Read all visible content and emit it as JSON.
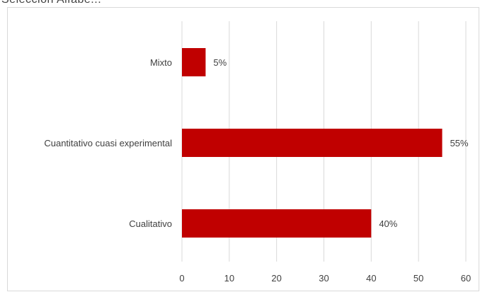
{
  "page": {
    "top_fragment": "Selección Alfabé..."
  },
  "chart_data": {
    "type": "bar",
    "orientation": "horizontal",
    "categories": [
      "Mixto",
      "Cuantitativo cuasi experimental",
      "Cualitativo"
    ],
    "values": [
      5,
      55,
      40
    ],
    "data_labels": [
      "5%",
      "55%",
      "40%"
    ],
    "title": "",
    "xlabel": "",
    "ylabel": "",
    "xlim": [
      0,
      60
    ],
    "x_ticks": [
      0,
      10,
      20,
      30,
      40,
      50,
      60
    ],
    "grid": "vertical",
    "legend": "none",
    "bar_color": "#c00000",
    "gridline_color": "#d9d9d9",
    "text_color": "#404040"
  }
}
